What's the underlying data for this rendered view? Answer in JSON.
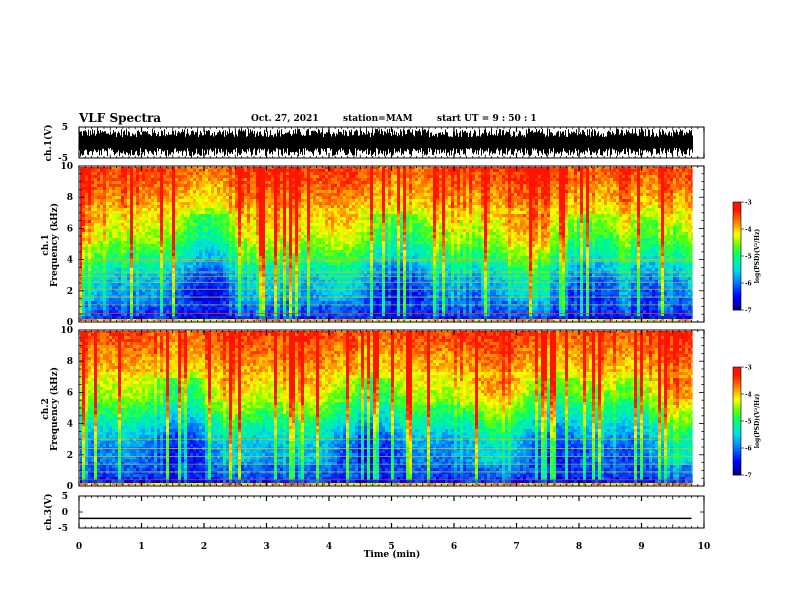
{
  "header": {
    "title": "VLF Spectra",
    "date": "Oct. 27, 2021",
    "station": "station=MAM",
    "start_ut": "start  UT =  9 : 50 : 1"
  },
  "chart_data": [
    {
      "type": "line",
      "panel": "ch1-waveform",
      "ylabel": "ch.1(V)",
      "ylim": [
        -5,
        5
      ],
      "yticks": [
        "5",
        "-5"
      ],
      "xlim": [
        0,
        10
      ],
      "note_series": "dense noisy waveform spanning roughly -3 to +3 V over 0-9.8 min"
    },
    {
      "type": "heatmap",
      "panel": "ch1-spectrogram",
      "ylabel": "ch.1\nFrequency (kHz)",
      "ylim": [
        0,
        10
      ],
      "yticks": [
        "0",
        "2",
        "4",
        "6",
        "8",
        "10"
      ],
      "xlim": [
        0,
        10
      ],
      "colorbar": {
        "ticks": [
          "-3",
          "-4",
          "-5",
          "-6",
          "-7"
        ],
        "label": "log(PSD)(V²/Hz)",
        "range": [
          -7,
          -3
        ]
      },
      "colors": [
        "#000080",
        "#0000ff",
        "#00aaff",
        "#00ffaa",
        "#44ff00",
        "#ffff00",
        "#ff8800",
        "#ff0000"
      ]
    },
    {
      "type": "heatmap",
      "panel": "ch2-spectrogram",
      "ylabel": "ch.2\nFrequency (kHz)",
      "ylim": [
        0,
        10
      ],
      "yticks": [
        "0",
        "2",
        "4",
        "6",
        "8",
        "10"
      ],
      "xlim": [
        0,
        10
      ],
      "colorbar": {
        "ticks": [
          "-3",
          "-4",
          "-5",
          "-6",
          "-7"
        ],
        "label": "log(PSD)(V²/Hz)",
        "range": [
          -7,
          -3
        ]
      }
    },
    {
      "type": "line",
      "panel": "ch3-waveform",
      "ylabel": "ch.3(V)",
      "ylim": [
        -5,
        5
      ],
      "yticks": [
        "5",
        "0",
        "-5"
      ],
      "xlim": [
        0,
        10
      ],
      "x": [
        0,
        9.8
      ],
      "y": [
        -2,
        -2
      ]
    }
  ],
  "xaxis": {
    "label": "Time (min)",
    "ticks": [
      "0",
      "1",
      "2",
      "3",
      "4",
      "5",
      "6",
      "7",
      "8",
      "9",
      "10"
    ]
  }
}
